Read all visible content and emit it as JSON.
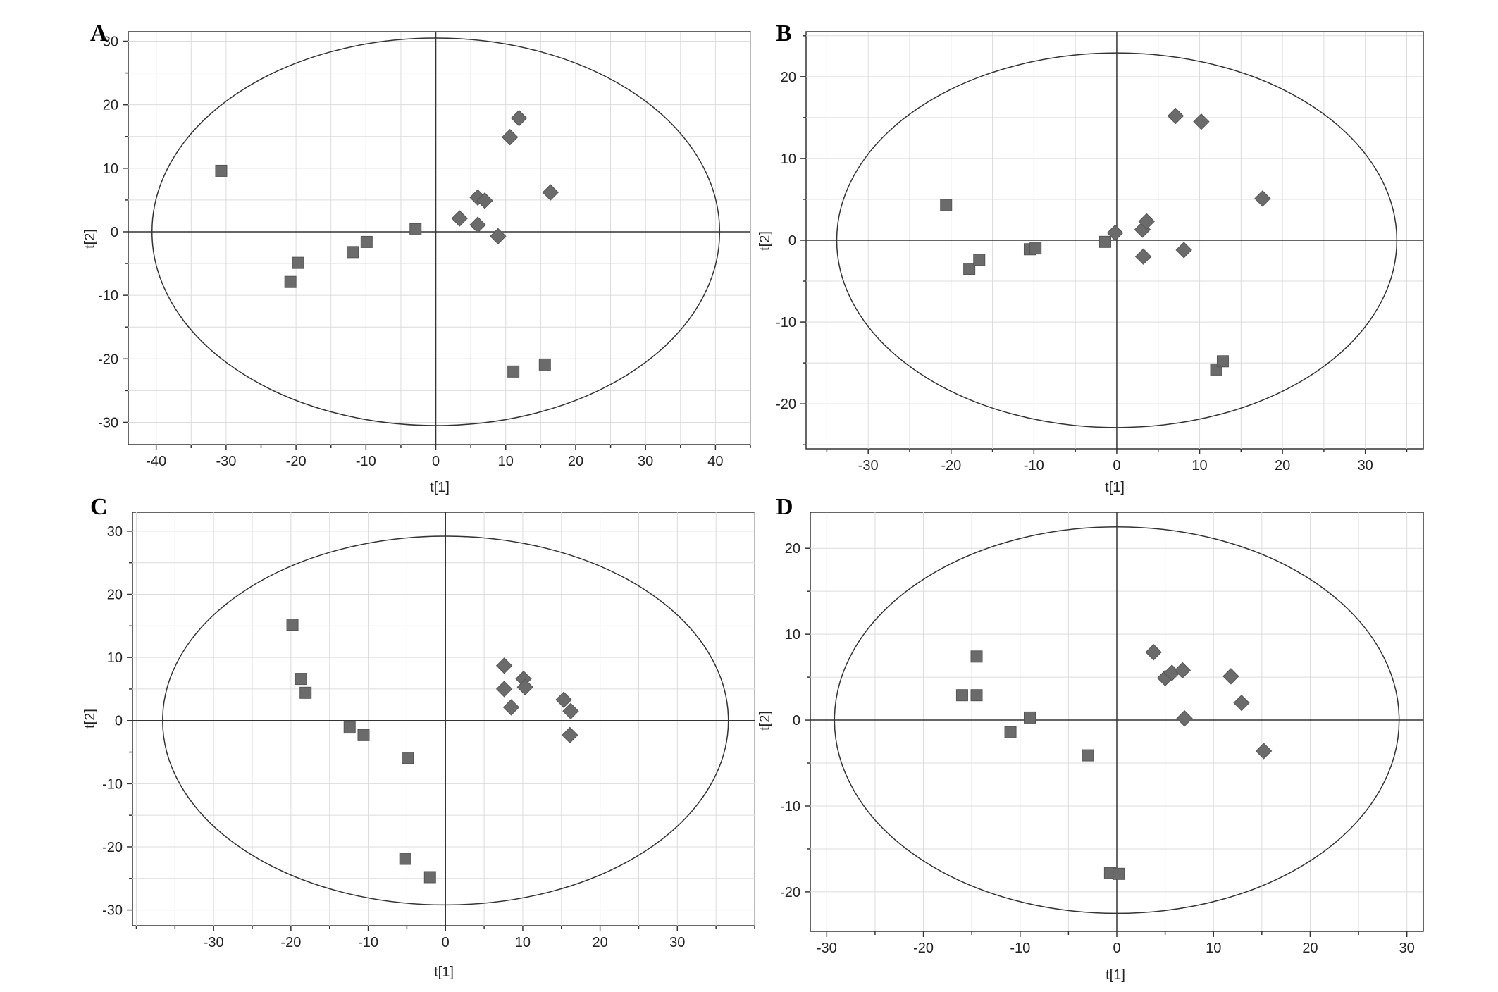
{
  "colors": {
    "marker": "#6b6b6b",
    "marker_stroke": "#555555"
  },
  "chart_data": [
    {
      "panel": "A",
      "type": "scatter",
      "xlabel": "t[1]",
      "ylabel": "t[2]",
      "xlim": [
        -44,
        45
      ],
      "ylim": [
        -33.5,
        31.5
      ],
      "xticks": [
        -40,
        -30,
        -20,
        -10,
        0,
        10,
        20,
        30,
        40
      ],
      "yticks": [
        -30,
        -20,
        -10,
        0,
        10,
        20,
        30
      ],
      "ellipse": {
        "rx": 40.6,
        "ry": 30.5
      },
      "grid": true,
      "series": [
        {
          "marker": "square",
          "points": [
            [
              -30.7,
              9.6
            ],
            [
              -20.8,
              -7.9
            ],
            [
              -19.7,
              -4.9
            ],
            [
              -11.9,
              -3.2
            ],
            [
              -9.9,
              -1.6
            ],
            [
              -2.9,
              0.4
            ],
            [
              11.1,
              -22.0
            ],
            [
              15.6,
              -20.9
            ]
          ]
        },
        {
          "marker": "diamond",
          "points": [
            [
              3.4,
              2.1
            ],
            [
              6.0,
              1.1
            ],
            [
              6.0,
              5.4
            ],
            [
              7.0,
              4.9
            ],
            [
              8.9,
              -0.7
            ],
            [
              10.6,
              14.9
            ],
            [
              11.9,
              17.9
            ],
            [
              16.4,
              6.2
            ]
          ]
        }
      ]
    },
    {
      "panel": "B",
      "type": "scatter",
      "xlabel": "t[1]",
      "ylabel": "t[2]",
      "xlim": [
        -37.5,
        37
      ],
      "ylim": [
        -25.5,
        25.5
      ],
      "xticks": [
        -30,
        -20,
        -10,
        0,
        10,
        20,
        30
      ],
      "yticks": [
        -20,
        -10,
        0,
        10,
        20
      ],
      "ellipse": {
        "rx": 33.8,
        "ry": 22.9
      },
      "grid": true,
      "series": [
        {
          "marker": "square",
          "points": [
            [
              -20.6,
              4.3
            ],
            [
              -17.8,
              -3.5
            ],
            [
              -16.6,
              -2.4
            ],
            [
              -10.5,
              -1.1
            ],
            [
              -9.8,
              -1.0
            ],
            [
              -1.4,
              -0.2
            ],
            [
              12.0,
              -15.8
            ],
            [
              12.8,
              -14.8
            ]
          ]
        },
        {
          "marker": "diamond",
          "points": [
            [
              -0.2,
              0.9
            ],
            [
              3.1,
              1.3
            ],
            [
              3.6,
              2.3
            ],
            [
              3.2,
              -2.0
            ],
            [
              7.1,
              15.2
            ],
            [
              10.2,
              14.5
            ],
            [
              8.1,
              -1.2
            ],
            [
              17.6,
              5.1
            ]
          ]
        }
      ]
    },
    {
      "panel": "C",
      "type": "scatter",
      "xlabel": "t[1]",
      "ylabel": "t[2]",
      "xlim": [
        -40.5,
        40
      ],
      "ylim": [
        -32.5,
        33
      ],
      "xticks": [
        -30,
        -20,
        -10,
        0,
        10,
        20,
        30
      ],
      "yticks": [
        -30,
        -20,
        -10,
        0,
        10,
        20,
        30
      ],
      "ellipse": {
        "rx": 36.6,
        "ry": 29.2
      },
      "grid": true,
      "series": [
        {
          "marker": "square",
          "points": [
            [
              -19.8,
              15.2
            ],
            [
              -18.7,
              6.6
            ],
            [
              -18.1,
              4.4
            ],
            [
              -12.4,
              -1.1
            ],
            [
              -10.6,
              -2.3
            ],
            [
              -4.9,
              -5.9
            ],
            [
              -5.2,
              -21.9
            ],
            [
              -2.0,
              -24.8
            ]
          ]
        },
        {
          "marker": "diamond",
          "points": [
            [
              7.6,
              8.7
            ],
            [
              7.6,
              5.0
            ],
            [
              8.5,
              2.1
            ],
            [
              10.1,
              6.6
            ],
            [
              10.3,
              5.3
            ],
            [
              15.3,
              3.3
            ],
            [
              16.2,
              1.5
            ],
            [
              16.1,
              -2.3
            ]
          ]
        }
      ]
    },
    {
      "panel": "D",
      "type": "scatter",
      "xlabel": "t[1]",
      "ylabel": "t[2]",
      "xlim": [
        -31.7,
        31.7
      ],
      "ylim": [
        -24.6,
        24.2
      ],
      "xticks": [
        -30,
        -20,
        -10,
        0,
        10,
        20,
        30
      ],
      "yticks": [
        -20,
        -10,
        0,
        10,
        20
      ],
      "ellipse": {
        "rx": 29.2,
        "ry": 22.5
      },
      "grid": true,
      "series": [
        {
          "marker": "square",
          "points": [
            [
              -16.0,
              2.9
            ],
            [
              -14.5,
              7.4
            ],
            [
              -14.5,
              2.9
            ],
            [
              -11.0,
              -1.4
            ],
            [
              -9.0,
              0.3
            ],
            [
              -3.0,
              -4.1
            ],
            [
              -0.7,
              -17.8
            ],
            [
              0.2,
              -17.9
            ]
          ]
        },
        {
          "marker": "diamond",
          "points": [
            [
              3.8,
              7.9
            ],
            [
              5.0,
              4.9
            ],
            [
              5.7,
              5.5
            ],
            [
              6.8,
              5.8
            ],
            [
              7.0,
              0.2
            ],
            [
              11.8,
              5.1
            ],
            [
              12.9,
              2.0
            ],
            [
              15.2,
              -3.6
            ]
          ]
        }
      ]
    }
  ]
}
